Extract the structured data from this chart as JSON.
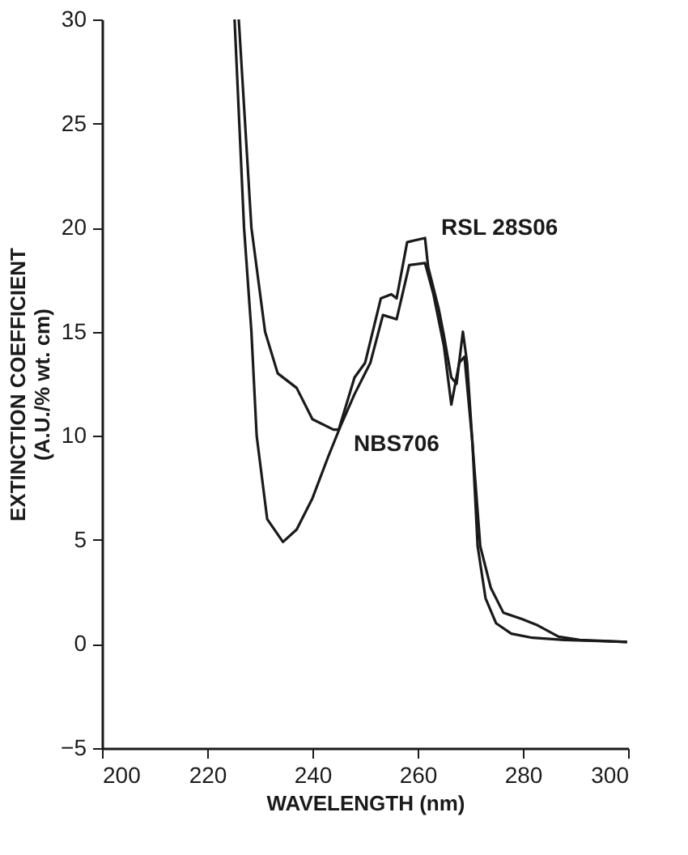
{
  "chart_data": {
    "type": "line",
    "xlabel": "WAVELENGTH  (nm)",
    "ylabel": "EXTINCTION COEFFICIENT\n(A.U./% wt. cm)",
    "xlim": [
      200,
      300
    ],
    "xticks": [
      200,
      220,
      240,
      260,
      280,
      300
    ],
    "ylim": [
      -5,
      30
    ],
    "yticks": [
      -5,
      0,
      5,
      10,
      15,
      20,
      25,
      30
    ],
    "grid": false,
    "marker": "none",
    "line_style": "solid",
    "series": [
      {
        "name": "RSL 28S06",
        "color": "#1a1a1a",
        "x": [
          226,
          228.4,
          231,
          233.4,
          237,
          240,
          244,
          245,
          248,
          250,
          253,
          255,
          256,
          258,
          261.4,
          262,
          264,
          265,
          266.4,
          267.4,
          268.6,
          269.4,
          270.4,
          271.9,
          273.9,
          276.3,
          279.8,
          282.8,
          286.8,
          290.8,
          299.8
        ],
        "values": [
          30,
          20,
          15,
          13.0,
          12.3,
          10.8,
          10.3,
          10.3,
          12.8,
          13.5,
          16.6,
          16.8,
          16.6,
          19.3,
          19.5,
          18.1,
          16.1,
          14.8,
          12.8,
          12.5,
          15.0,
          13.5,
          9.7,
          4.7,
          2.7,
          1.5,
          1.2,
          0.9,
          0.35,
          0.2,
          0.1
        ]
      },
      {
        "name": "NBS706",
        "color": "#1a1a1a",
        "x": [
          225.2,
          227,
          228.4,
          229.4,
          231.4,
          234.4,
          237,
          240,
          243,
          245.4,
          248,
          251,
          253.4,
          256,
          258.4,
          261.4,
          263,
          265,
          266.4,
          267.9,
          268.9,
          270.4,
          271.4,
          272.9,
          274.9,
          277.8,
          281.8,
          287.8,
          299.8
        ],
        "values": [
          30,
          20,
          15,
          10,
          6,
          4.9,
          5.5,
          7.0,
          9.0,
          10.5,
          12.0,
          13.5,
          15.8,
          15.6,
          18.2,
          18.3,
          16.8,
          14.3,
          11.5,
          13.5,
          13.8,
          9.7,
          4.7,
          2.2,
          1.0,
          0.5,
          0.3,
          0.2,
          0.1
        ]
      }
    ]
  }
}
